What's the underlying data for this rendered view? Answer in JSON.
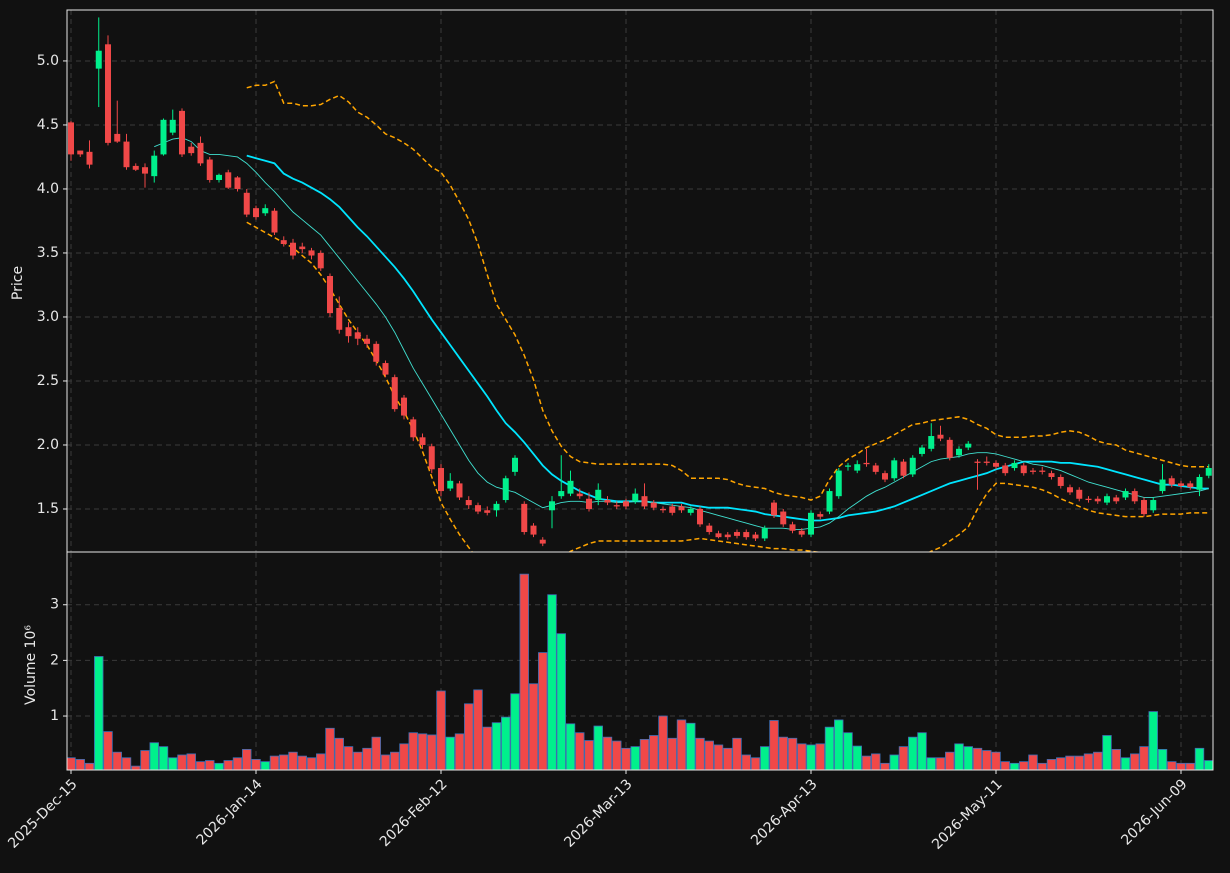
{
  "chart_data": {
    "type": "candlestick",
    "ylabel": "Price",
    "ylim": [
      1.164,
      5.398
    ],
    "yticks": [
      1.5,
      {
        "value": 2,
        "label": "2.0"
      },
      2.5,
      {
        "value": 3,
        "label": "3.0"
      },
      3.5,
      {
        "value": 4,
        "label": "4.0"
      },
      4.5,
      {
        "value": 5,
        "label": "5.0"
      }
    ],
    "grid": true,
    "up_color": "#00f08c",
    "down_color": "#f04848",
    "categories": [
      "2025-Dec-15",
      null,
      null,
      null,
      null,
      null,
      null,
      null,
      null,
      null,
      null,
      null,
      null,
      null,
      null,
      null,
      null,
      null,
      null,
      null,
      "2026-Jan-14",
      null,
      null,
      null,
      null,
      null,
      null,
      null,
      null,
      null,
      null,
      null,
      null,
      null,
      null,
      null,
      null,
      null,
      null,
      null,
      "2026-Feb-12",
      null,
      null,
      null,
      null,
      null,
      null,
      null,
      null,
      null,
      null,
      null,
      null,
      null,
      null,
      null,
      null,
      null,
      null,
      null,
      "2026-Mar-13",
      null,
      null,
      null,
      null,
      null,
      null,
      null,
      null,
      null,
      null,
      null,
      null,
      null,
      null,
      null,
      null,
      null,
      null,
      null,
      "2026-Apr-13",
      null,
      null,
      null,
      null,
      null,
      null,
      null,
      null,
      null,
      null,
      null,
      null,
      null,
      null,
      null,
      null,
      null,
      null,
      null,
      "2026-May-11",
      null,
      null,
      null,
      null,
      null,
      null,
      null,
      null,
      null,
      null,
      null,
      null,
      null,
      null,
      null,
      null,
      null,
      null,
      null,
      "2026-Jun-09",
      null,
      null,
      null
    ],
    "open": [
      4.52,
      4.3,
      4.29,
      4.94,
      5.13,
      4.43,
      4.37,
      4.18,
      4.17,
      4.1,
      4.27,
      4.44,
      4.61,
      4.33,
      4.36,
      4.23,
      4.07,
      4.13,
      4.09,
      3.97,
      3.85,
      3.81,
      3.83,
      3.6,
      3.58,
      3.55,
      3.52,
      3.5,
      3.32,
      3.07,
      2.92,
      2.88,
      2.83,
      2.79,
      2.64,
      2.53,
      2.37,
      2.2,
      2.06,
      1.99,
      1.82,
      1.66,
      1.7,
      1.57,
      1.53,
      1.49,
      1.49,
      1.57,
      1.79,
      1.54,
      1.37,
      1.26,
      1.49,
      1.6,
      1.62,
      1.62,
      1.58,
      1.57,
      1.57,
      1.53,
      1.56,
      1.56,
      1.6,
      1.55,
      1.5,
      1.52,
      1.52,
      1.47,
      1.5,
      1.37,
      1.31,
      1.3,
      1.32,
      1.32,
      1.3,
      1.27,
      1.55,
      1.48,
      1.38,
      1.33,
      1.3,
      1.46,
      1.48,
      1.6,
      1.83,
      1.8,
      1.86,
      1.84,
      1.78,
      1.74,
      1.87,
      1.77,
      1.93,
      1.97,
      2.08,
      2.04,
      1.92,
      1.98,
      1.87,
      1.87,
      1.86,
      1.84,
      1.82,
      1.84,
      1.8,
      1.8,
      1.78,
      1.75,
      1.67,
      1.65,
      1.58,
      1.58,
      1.55,
      1.59,
      1.59,
      1.64,
      1.57,
      1.49,
      1.64,
      1.74,
      1.7,
      1.7,
      1.65,
      1.76
    ],
    "high": [
      4.53,
      4.3,
      4.38,
      5.34,
      5.2,
      4.69,
      4.43,
      4.2,
      4.2,
      4.3,
      4.55,
      4.62,
      4.63,
      4.36,
      4.41,
      4.25,
      4.12,
      4.15,
      4.1,
      4.0,
      3.87,
      3.88,
      3.85,
      3.63,
      3.61,
      3.58,
      3.54,
      3.52,
      3.34,
      3.16,
      2.96,
      2.92,
      2.86,
      2.81,
      2.66,
      2.55,
      2.39,
      2.22,
      2.09,
      2.01,
      1.85,
      1.78,
      1.72,
      1.6,
      1.55,
      1.52,
      1.56,
      1.76,
      1.92,
      1.56,
      1.39,
      1.28,
      1.6,
      1.92,
      1.8,
      1.66,
      1.63,
      1.7,
      1.6,
      1.56,
      1.58,
      1.66,
      1.7,
      1.57,
      1.52,
      1.54,
      1.54,
      1.52,
      1.52,
      1.39,
      1.33,
      1.32,
      1.34,
      1.34,
      1.32,
      1.37,
      1.57,
      1.5,
      1.4,
      1.35,
      1.49,
      1.48,
      1.66,
      1.82,
      1.86,
      1.88,
      1.97,
      1.86,
      1.8,
      1.9,
      1.89,
      1.92,
      2.0,
      2.17,
      2.15,
      2.06,
      1.99,
      2.03,
      1.89,
      1.91,
      1.88,
      1.86,
      1.88,
      1.86,
      1.82,
      1.83,
      1.8,
      1.77,
      1.69,
      1.67,
      1.6,
      1.6,
      1.62,
      1.61,
      1.66,
      1.66,
      1.59,
      1.59,
      1.85,
      1.76,
      1.72,
      1.72,
      1.77,
      1.85
    ],
    "low": [
      4.22,
      4.25,
      4.16,
      4.64,
      4.34,
      4.36,
      4.15,
      4.14,
      4.01,
      4.05,
      4.26,
      4.42,
      4.25,
      4.26,
      4.18,
      4.05,
      4.05,
      4.0,
      3.98,
      3.78,
      3.76,
      3.79,
      3.64,
      3.55,
      3.45,
      3.5,
      3.45,
      3.36,
      3.0,
      2.87,
      2.8,
      2.78,
      2.76,
      2.62,
      2.53,
      2.26,
      2.2,
      2.03,
      1.97,
      1.78,
      1.6,
      1.64,
      1.57,
      1.5,
      1.46,
      1.45,
      1.44,
      1.55,
      1.76,
      1.3,
      1.28,
      1.21,
      1.35,
      1.58,
      1.6,
      1.58,
      1.48,
      1.53,
      1.53,
      1.5,
      1.5,
      1.54,
      1.5,
      1.49,
      1.47,
      1.45,
      1.47,
      1.45,
      1.36,
      1.3,
      1.27,
      1.26,
      1.27,
      1.26,
      1.25,
      1.25,
      1.43,
      1.36,
      1.31,
      1.28,
      1.28,
      1.42,
      1.46,
      1.58,
      1.8,
      1.78,
      1.83,
      1.77,
      1.71,
      1.72,
      1.74,
      1.75,
      1.91,
      1.95,
      2.03,
      1.88,
      1.9,
      1.96,
      1.65,
      1.84,
      1.81,
      1.76,
      1.8,
      1.76,
      1.77,
      1.77,
      1.73,
      1.66,
      1.61,
      1.56,
      1.55,
      1.54,
      1.53,
      1.54,
      1.57,
      1.54,
      1.44,
      1.47,
      1.62,
      1.67,
      1.66,
      1.65,
      1.6,
      1.74
    ],
    "close": [
      4.27,
      4.27,
      4.19,
      5.08,
      4.36,
      4.37,
      4.17,
      4.15,
      4.12,
      4.26,
      4.54,
      4.54,
      4.27,
      4.28,
      4.2,
      4.07,
      4.11,
      4.01,
      4.0,
      3.8,
      3.78,
      3.85,
      3.66,
      3.57,
      3.48,
      3.53,
      3.48,
      3.38,
      3.03,
      2.9,
      2.85,
      2.83,
      2.79,
      2.65,
      2.55,
      2.28,
      2.23,
      2.06,
      2.0,
      1.81,
      1.64,
      1.72,
      1.59,
      1.53,
      1.48,
      1.47,
      1.54,
      1.74,
      1.9,
      1.32,
      1.3,
      1.23,
      1.56,
      1.64,
      1.72,
      1.6,
      1.5,
      1.65,
      1.55,
      1.52,
      1.52,
      1.62,
      1.52,
      1.51,
      1.49,
      1.47,
      1.49,
      1.5,
      1.38,
      1.32,
      1.28,
      1.28,
      1.29,
      1.28,
      1.27,
      1.35,
      1.45,
      1.38,
      1.33,
      1.3,
      1.47,
      1.44,
      1.64,
      1.8,
      1.84,
      1.85,
      1.85,
      1.79,
      1.73,
      1.88,
      1.76,
      1.9,
      1.98,
      2.07,
      2.05,
      1.9,
      1.97,
      2.01,
      1.86,
      1.86,
      1.83,
      1.78,
      1.86,
      1.78,
      1.79,
      1.79,
      1.75,
      1.68,
      1.63,
      1.58,
      1.57,
      1.56,
      1.6,
      1.56,
      1.64,
      1.56,
      1.46,
      1.57,
      1.73,
      1.69,
      1.68,
      1.67,
      1.75,
      1.82
    ],
    "overlays": [
      {
        "color": "#ffa500",
        "style": "dashed",
        "values": [
          null,
          null,
          null,
          null,
          null,
          null,
          null,
          null,
          null,
          null,
          null,
          null,
          null,
          null,
          null,
          null,
          null,
          null,
          null,
          4.79,
          4.81,
          4.81,
          4.84,
          4.67,
          4.67,
          4.65,
          4.65,
          4.66,
          4.7,
          4.73,
          4.68,
          4.6,
          4.56,
          4.5,
          4.43,
          4.4,
          4.36,
          4.31,
          4.24,
          4.17,
          4.13,
          4.03,
          3.9,
          3.76,
          3.57,
          3.33,
          3.1,
          2.98,
          2.86,
          2.7,
          2.51,
          2.27,
          2.11,
          1.99,
          1.91,
          1.87,
          1.86,
          1.85,
          1.85,
          1.85,
          1.85,
          1.85,
          1.85,
          1.85,
          1.85,
          1.84,
          1.8,
          1.74,
          1.74,
          1.74,
          1.74,
          1.73,
          1.7,
          1.68,
          1.67,
          1.66,
          1.63,
          1.61,
          1.6,
          1.59,
          1.57,
          1.6,
          1.73,
          1.83,
          1.89,
          1.93,
          1.98,
          2.01,
          2.04,
          2.08,
          2.12,
          2.16,
          2.17,
          2.19,
          2.2,
          2.21,
          2.22,
          2.2,
          2.16,
          2.13,
          2.08,
          2.06,
          2.06,
          2.06,
          2.07,
          2.07,
          2.08,
          2.1,
          2.11,
          2.1,
          2.07,
          2.03,
          2.01,
          2.0,
          1.96,
          1.94,
          1.92,
          1.9,
          1.88,
          1.86,
          1.84,
          1.83,
          1.83,
          1.83
        ]
      },
      {
        "color": "#ffa500",
        "style": "dashed",
        "values": [
          null,
          null,
          null,
          null,
          null,
          null,
          null,
          null,
          null,
          null,
          null,
          null,
          null,
          null,
          null,
          null,
          null,
          null,
          null,
          3.74,
          3.7,
          3.66,
          3.62,
          3.58,
          3.54,
          3.48,
          3.42,
          3.33,
          3.22,
          3.1,
          2.98,
          2.88,
          2.78,
          2.66,
          2.53,
          2.38,
          2.26,
          2.12,
          1.95,
          1.75,
          1.55,
          1.42,
          1.3,
          1.2,
          1.1,
          1.02,
          0.97,
          0.93,
          0.91,
          0.92,
          0.95,
          1.0,
          1.06,
          1.12,
          1.17,
          1.2,
          1.23,
          1.25,
          1.25,
          1.25,
          1.25,
          1.25,
          1.25,
          1.25,
          1.25,
          1.25,
          1.25,
          1.26,
          1.27,
          1.26,
          1.25,
          1.24,
          1.23,
          1.22,
          1.21,
          1.2,
          1.19,
          1.19,
          1.18,
          1.18,
          1.17,
          1.16,
          1.12,
          1.06,
          1.01,
          0.98,
          0.96,
          0.96,
          0.98,
          1.02,
          1.06,
          1.1,
          1.13,
          1.17,
          1.2,
          1.25,
          1.3,
          1.36,
          1.5,
          1.62,
          1.7,
          1.7,
          1.69,
          1.68,
          1.67,
          1.65,
          1.62,
          1.58,
          1.55,
          1.52,
          1.49,
          1.47,
          1.46,
          1.45,
          1.44,
          1.44,
          1.44,
          1.45,
          1.46,
          1.46,
          1.46,
          1.47,
          1.47,
          1.47
        ]
      },
      {
        "color": "#00e5ff",
        "style": "thick",
        "values": [
          null,
          null,
          null,
          null,
          null,
          null,
          null,
          null,
          null,
          null,
          null,
          null,
          null,
          null,
          null,
          null,
          null,
          null,
          null,
          4.26,
          4.24,
          4.22,
          4.2,
          4.12,
          4.08,
          4.05,
          4.01,
          3.97,
          3.92,
          3.86,
          3.78,
          3.7,
          3.63,
          3.55,
          3.47,
          3.39,
          3.3,
          3.2,
          3.09,
          2.98,
          2.88,
          2.78,
          2.68,
          2.58,
          2.48,
          2.38,
          2.27,
          2.17,
          2.1,
          2.02,
          1.93,
          1.84,
          1.77,
          1.72,
          1.68,
          1.64,
          1.61,
          1.58,
          1.57,
          1.56,
          1.56,
          1.56,
          1.56,
          1.55,
          1.55,
          1.55,
          1.55,
          1.53,
          1.52,
          1.51,
          1.51,
          1.51,
          1.5,
          1.49,
          1.48,
          1.46,
          1.45,
          1.44,
          1.43,
          1.42,
          1.41,
          1.41,
          1.42,
          1.43,
          1.45,
          1.46,
          1.47,
          1.48,
          1.5,
          1.52,
          1.55,
          1.58,
          1.61,
          1.64,
          1.67,
          1.7,
          1.72,
          1.74,
          1.76,
          1.78,
          1.81,
          1.83,
          1.85,
          1.87,
          1.87,
          1.87,
          1.87,
          1.86,
          1.86,
          1.85,
          1.84,
          1.83,
          1.81,
          1.79,
          1.77,
          1.75,
          1.73,
          1.71,
          1.69,
          1.69,
          1.68,
          1.67,
          1.66,
          1.66
        ]
      },
      {
        "color": "#40e0d0",
        "style": "thin",
        "values": [
          null,
          null,
          null,
          null,
          null,
          null,
          null,
          null,
          null,
          4.33,
          4.36,
          4.39,
          4.4,
          4.37,
          4.3,
          4.27,
          4.27,
          4.26,
          4.25,
          4.2,
          4.13,
          4.05,
          3.98,
          3.9,
          3.82,
          3.76,
          3.7,
          3.64,
          3.55,
          3.46,
          3.37,
          3.28,
          3.19,
          3.1,
          3.0,
          2.88,
          2.74,
          2.6,
          2.48,
          2.36,
          2.24,
          2.12,
          2.0,
          1.88,
          1.78,
          1.71,
          1.67,
          1.65,
          1.63,
          1.59,
          1.55,
          1.51,
          1.53,
          1.55,
          1.56,
          1.56,
          1.55,
          1.56,
          1.56,
          1.55,
          1.55,
          1.56,
          1.56,
          1.55,
          1.54,
          1.53,
          1.52,
          1.51,
          1.49,
          1.47,
          1.45,
          1.43,
          1.41,
          1.39,
          1.37,
          1.35,
          1.35,
          1.35,
          1.34,
          1.34,
          1.35,
          1.36,
          1.39,
          1.44,
          1.5,
          1.55,
          1.6,
          1.64,
          1.67,
          1.71,
          1.75,
          1.79,
          1.83,
          1.87,
          1.89,
          1.9,
          1.91,
          1.93,
          1.94,
          1.94,
          1.93,
          1.91,
          1.89,
          1.87,
          1.85,
          1.84,
          1.82,
          1.8,
          1.77,
          1.74,
          1.71,
          1.69,
          1.67,
          1.65,
          1.63,
          1.61,
          1.59,
          1.59,
          1.6,
          1.61,
          1.62,
          1.63,
          1.64,
          1.66
        ]
      }
    ],
    "volume": {
      "ylabel": "Volume  10⁶",
      "ylim": [
        0.03,
        3.93
      ],
      "yticks": [
        1,
        2,
        3
      ],
      "edge_color": "#3f6fb5",
      "values": [
        0.25,
        0.22,
        0.15,
        2.07,
        0.72,
        0.35,
        0.25,
        0.1,
        0.38,
        0.52,
        0.45,
        0.25,
        0.3,
        0.32,
        0.18,
        0.2,
        0.15,
        0.2,
        0.25,
        0.4,
        0.22,
        0.18,
        0.28,
        0.3,
        0.35,
        0.28,
        0.25,
        0.32,
        0.78,
        0.6,
        0.45,
        0.35,
        0.42,
        0.62,
        0.3,
        0.35,
        0.5,
        0.7,
        0.68,
        0.66,
        1.45,
        0.62,
        0.68,
        1.22,
        1.47,
        0.8,
        0.88,
        0.98,
        1.4,
        3.55,
        1.58,
        2.14,
        3.18,
        2.48,
        0.86,
        0.7,
        0.56,
        0.82,
        0.62,
        0.55,
        0.42,
        0.45,
        0.58,
        0.65,
        1.0,
        0.6,
        0.93,
        0.87,
        0.6,
        0.55,
        0.48,
        0.42,
        0.6,
        0.3,
        0.25,
        0.45,
        0.92,
        0.62,
        0.6,
        0.5,
        0.48,
        0.5,
        0.8,
        0.93,
        0.7,
        0.46,
        0.28,
        0.32,
        0.15,
        0.3,
        0.45,
        0.62,
        0.7,
        0.25,
        0.25,
        0.35,
        0.5,
        0.45,
        0.42,
        0.38,
        0.35,
        0.18,
        0.15,
        0.18,
        0.3,
        0.15,
        0.22,
        0.25,
        0.28,
        0.28,
        0.32,
        0.35,
        0.65,
        0.4,
        0.25,
        0.32,
        0.45,
        1.08,
        0.4,
        0.18,
        0.15,
        0.15,
        0.42,
        0.2
      ]
    }
  }
}
